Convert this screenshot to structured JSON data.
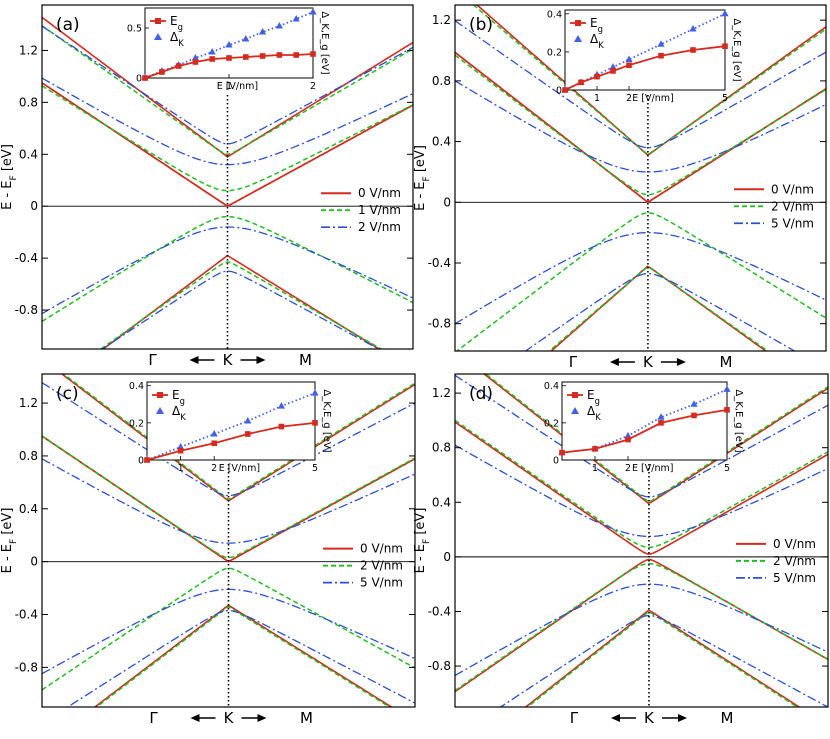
{
  "colors": {
    "v0": "#d62a1e",
    "v1": "#1fbf1f",
    "v2": "#2b4fd6",
    "eg": "#d62a1e",
    "dk": "#4060e8",
    "axis": "#000000"
  },
  "chart_data": [
    {
      "panel": "(a)",
      "type": "line",
      "title": "(a)",
      "ylabel": "E - E_F [eV]",
      "xlabel": "",
      "ylim": [
        -1.1,
        1.55
      ],
      "yticks": [
        "1.2",
        "0.8",
        "0.4",
        "0",
        "-0.4",
        "-0.8"
      ],
      "ytick_values": [
        1.2,
        0.8,
        0.4,
        0,
        -0.4,
        -0.8
      ],
      "xcats": [
        "Γ",
        "K",
        "M"
      ],
      "kpoint": 0.5,
      "legend": {
        "placement": "right",
        "labels": [
          "0 V/nm",
          "1 V/nm",
          "2 V/nm"
        ]
      },
      "series": [
        {
          "name": "0 V/nm",
          "style": "solid",
          "bands": [
            {
              "d": 0.0,
              "v": 0.5,
              "c": 0.38
            },
            {
              "d": 0.0,
              "v": 0.5,
              "c": -0.38
            },
            {
              "d": 0.0,
              "v": 0.5,
              "c": 0.0
            },
            {
              "d": 0.0,
              "v": 0.5,
              "c": -0.0
            }
          ]
        },
        {
          "name": "1 V/nm",
          "style": "dash",
          "bands": [
            {
              "d": 0.02,
              "v": 0.47,
              "c": 0.4
            },
            {
              "d": 0.02,
              "v": 0.47,
              "c": -0.43
            },
            {
              "d": 0.09,
              "v": 0.47,
              "c": 0.12
            },
            {
              "d": 0.09,
              "v": 0.47,
              "c": -0.08
            }
          ]
        },
        {
          "name": "2 V/nm",
          "style": "dashdot",
          "bands": [
            {
              "d": 0.04,
              "v": 0.44,
              "c": 0.48
            },
            {
              "d": 0.04,
              "v": 0.44,
              "c": -0.5
            },
            {
              "d": 0.19,
              "v": 0.44,
              "c": 0.32
            },
            {
              "d": 0.19,
              "v": 0.44,
              "c": -0.16
            }
          ]
        }
      ],
      "inset": {
        "xlabel": "E [V/nm]",
        "ylabel": "Δ_K,E_g [eV]",
        "xlim": [
          0,
          2
        ],
        "ylim": [
          0,
          0.7
        ],
        "xticks": [
          "1",
          "2"
        ],
        "xtick_values": [
          1,
          2
        ],
        "yticks": [
          "0",
          "0.5"
        ],
        "ytick_values": [
          0,
          0.5
        ],
        "eg_label": "E_g",
        "dk_label": "Δ_K",
        "eg": {
          "x": [
            0,
            0.2,
            0.4,
            0.6,
            0.8,
            1.0,
            1.2,
            1.4,
            1.6,
            1.8,
            2.0
          ],
          "y": [
            0.0,
            0.06,
            0.12,
            0.16,
            0.19,
            0.2,
            0.21,
            0.22,
            0.23,
            0.23,
            0.24
          ]
        },
        "dk": {
          "x": [
            0,
            0.2,
            0.4,
            0.6,
            0.8,
            1.0,
            1.2,
            1.4,
            1.6,
            1.8,
            2.0
          ],
          "y": [
            0.0,
            0.07,
            0.13,
            0.2,
            0.26,
            0.33,
            0.39,
            0.46,
            0.52,
            0.59,
            0.66
          ]
        }
      }
    },
    {
      "panel": "(b)",
      "type": "line",
      "title": "(b)",
      "ylabel": "E - E_F [eV]",
      "xlabel": "",
      "ylim": [
        -0.98,
        1.3
      ],
      "yticks": [
        "1.2",
        "0.8",
        "0.4",
        "0",
        "-0.4",
        "-0.8"
      ],
      "ytick_values": [
        1.2,
        0.8,
        0.4,
        0,
        -0.4,
        -0.8
      ],
      "xcats": [
        "Γ",
        "K",
        "M"
      ],
      "kpoint": 0.52,
      "legend": {
        "placement": "right",
        "labels": [
          "0 V/nm",
          "2 V/nm",
          "5 V/nm"
        ]
      },
      "series": [
        {
          "name": "0 V/nm",
          "style": "solid",
          "bands": [
            {
              "d": 0.0,
              "v": 0.5,
              "c": 0.31
            },
            {
              "d": 0.0,
              "v": 0.5,
              "c": -0.42
            },
            {
              "d": 0.0,
              "v": 0.5,
              "c": 0.0
            },
            {
              "d": 0.0,
              "v": 0.5,
              "c": -0.0
            }
          ]
        },
        {
          "name": "2 V/nm",
          "style": "dash",
          "bands": [
            {
              "d": 0.01,
              "v": 0.49,
              "c": 0.32
            },
            {
              "d": 0.01,
              "v": 0.49,
              "c": -0.43
            },
            {
              "d": 0.05,
              "v": 0.49,
              "c": 0.05
            },
            {
              "d": 0.05,
              "v": 0.49,
              "c": -0.07
            }
          ]
        },
        {
          "name": "5 V/nm",
          "style": "dashdot",
          "bands": [
            {
              "d": 0.06,
              "v": 0.4,
              "c": 0.36
            },
            {
              "d": 0.06,
              "v": 0.4,
              "c": -0.47
            },
            {
              "d": 0.22,
              "v": 0.4,
              "c": 0.2
            },
            {
              "d": 0.22,
              "v": 0.4,
              "c": -0.2
            }
          ]
        }
      ],
      "inset": {
        "xlabel": "E [V/nm]",
        "ylabel": "Δ_K,E_g [eV]",
        "xlim": [
          0,
          5
        ],
        "ylim": [
          0,
          0.42
        ],
        "xticks": [
          "1",
          "2",
          "5"
        ],
        "xtick_values": [
          1,
          2,
          5
        ],
        "yticks": [
          "0",
          "0.2",
          "0.4"
        ],
        "ytick_values": [
          0,
          0.2,
          0.4
        ],
        "eg_label": "E_g",
        "dk_label": "Δ_K",
        "eg": {
          "x": [
            0,
            0.5,
            1,
            1.5,
            2,
            3,
            4,
            5
          ],
          "y": [
            0.0,
            0.04,
            0.07,
            0.1,
            0.13,
            0.18,
            0.21,
            0.23
          ]
        },
        "dk": {
          "x": [
            0,
            0.5,
            1,
            1.5,
            2,
            3,
            4,
            5
          ],
          "y": [
            0.0,
            0.04,
            0.08,
            0.12,
            0.16,
            0.24,
            0.32,
            0.4
          ]
        }
      }
    },
    {
      "panel": "(c)",
      "type": "line",
      "title": "(c)",
      "ylabel": "E - E_F [eV]",
      "xlabel": "",
      "ylim": [
        -1.1,
        1.42
      ],
      "yticks": [
        "1.2",
        "0.8",
        "0.4",
        "0",
        "-0.4",
        "-0.8"
      ],
      "ytick_values": [
        1.2,
        0.8,
        0.4,
        0,
        -0.4,
        -0.8
      ],
      "xcats": [
        "Γ",
        "K",
        "M"
      ],
      "kpoint": 0.5,
      "legend": {
        "placement": "right",
        "labels": [
          "0 V/nm",
          "2 V/nm",
          "5 V/nm"
        ]
      },
      "series": [
        {
          "name": "0 V/nm",
          "style": "solid",
          "bands": [
            {
              "d": 0.0,
              "v": 0.5,
              "c": 0.46
            },
            {
              "d": 0.0,
              "v": 0.5,
              "c": -0.33
            },
            {
              "d": 0.0,
              "v": 0.5,
              "c": 0.0
            },
            {
              "d": 0.0,
              "v": 0.5,
              "c": -0.0
            }
          ]
        },
        {
          "name": "2 V/nm",
          "style": "dash",
          "bands": [
            {
              "d": 0.0,
              "v": 0.5,
              "c": 0.47
            },
            {
              "d": 0.0,
              "v": 0.5,
              "c": -0.34
            },
            {
              "d": 0.03,
              "v": 0.5,
              "c": 0.03
            },
            {
              "d": 0.03,
              "v": 0.5,
              "c": -0.05
            }
          ]
        },
        {
          "name": "5 V/nm",
          "style": "dashdot",
          "bands": [
            {
              "d": 0.05,
              "v": 0.42,
              "c": 0.5
            },
            {
              "d": 0.05,
              "v": 0.42,
              "c": -0.37
            },
            {
              "d": 0.18,
              "v": 0.42,
              "c": 0.14
            },
            {
              "d": 0.18,
              "v": 0.42,
              "c": -0.21
            }
          ]
        }
      ],
      "inset": {
        "xlabel": "E [V/nm]",
        "ylabel": "Δ_K,E_g [eV]",
        "xlim": [
          0,
          5
        ],
        "ylim": [
          0,
          0.42
        ],
        "xticks": [
          "1",
          "2",
          "5"
        ],
        "xtick_values": [
          1,
          2,
          5
        ],
        "yticks": [
          "0",
          "0.2",
          "0.4"
        ],
        "ytick_values": [
          0,
          0.2,
          0.4
        ],
        "eg_label": "E_g",
        "dk_label": "Δ_K",
        "eg": {
          "x": [
            0,
            1,
            2,
            3,
            4,
            5
          ],
          "y": [
            0.0,
            0.05,
            0.09,
            0.14,
            0.18,
            0.2
          ]
        },
        "dk": {
          "x": [
            0,
            1,
            2,
            3,
            4,
            5
          ],
          "y": [
            0.0,
            0.07,
            0.14,
            0.21,
            0.29,
            0.36
          ]
        }
      }
    },
    {
      "panel": "(d)",
      "type": "line",
      "title": "(d)",
      "ylabel": "E - E_F [eV]",
      "xlabel": "",
      "ylim": [
        -1.1,
        1.34
      ],
      "yticks": [
        "1.2",
        "0.8",
        "0.4",
        "0",
        "-0.4",
        "-0.8"
      ],
      "ytick_values": [
        1.2,
        0.8,
        0.4,
        0,
        -0.4,
        -0.8
      ],
      "xcats": [
        "Γ",
        "K",
        "M"
      ],
      "kpoint": 0.52,
      "legend": {
        "placement": "right",
        "labels": [
          "0 V/nm",
          "2 V/nm",
          "5 V/nm"
        ]
      },
      "series": [
        {
          "name": "0 V/nm",
          "style": "solid",
          "bands": [
            {
              "d": 0.0,
              "v": 0.5,
              "c": 0.39
            },
            {
              "d": 0.0,
              "v": 0.5,
              "c": -0.39
            },
            {
              "d": 0.02,
              "v": 0.5,
              "c": 0.02
            },
            {
              "d": 0.02,
              "v": 0.5,
              "c": -0.02
            }
          ]
        },
        {
          "name": "2 V/nm",
          "style": "dash",
          "bands": [
            {
              "d": 0.0,
              "v": 0.5,
              "c": 0.4
            },
            {
              "d": 0.0,
              "v": 0.5,
              "c": -0.4
            },
            {
              "d": 0.06,
              "v": 0.5,
              "c": 0.07
            },
            {
              "d": 0.06,
              "v": 0.5,
              "c": -0.05
            }
          ]
        },
        {
          "name": "5 V/nm",
          "style": "dashdot",
          "bands": [
            {
              "d": 0.05,
              "v": 0.42,
              "c": 0.44
            },
            {
              "d": 0.05,
              "v": 0.42,
              "c": -0.43
            },
            {
              "d": 0.18,
              "v": 0.42,
              "c": 0.15
            },
            {
              "d": 0.18,
              "v": 0.42,
              "c": -0.2
            }
          ]
        }
      ],
      "inset": {
        "xlabel": "E [V/nm]",
        "ylabel": "Δ_K,E_g [eV]",
        "xlim": [
          0,
          5
        ],
        "ylim": [
          0,
          0.42
        ],
        "xticks": [
          "1",
          "2",
          "5"
        ],
        "xtick_values": [
          1,
          2,
          5
        ],
        "yticks": [
          "0",
          "0.2",
          "0.4"
        ],
        "ytick_values": [
          0,
          0.2,
          0.4
        ],
        "eg_label": "E_g",
        "dk_label": "Δ_K",
        "eg": {
          "x": [
            0,
            1,
            2,
            3,
            4,
            5
          ],
          "y": [
            0.04,
            0.06,
            0.11,
            0.2,
            0.24,
            0.27
          ]
        },
        "dk": {
          "x": [
            0,
            1,
            2,
            3,
            4,
            5
          ],
          "y": [
            0.04,
            0.06,
            0.13,
            0.23,
            0.3,
            0.38
          ]
        }
      }
    }
  ]
}
